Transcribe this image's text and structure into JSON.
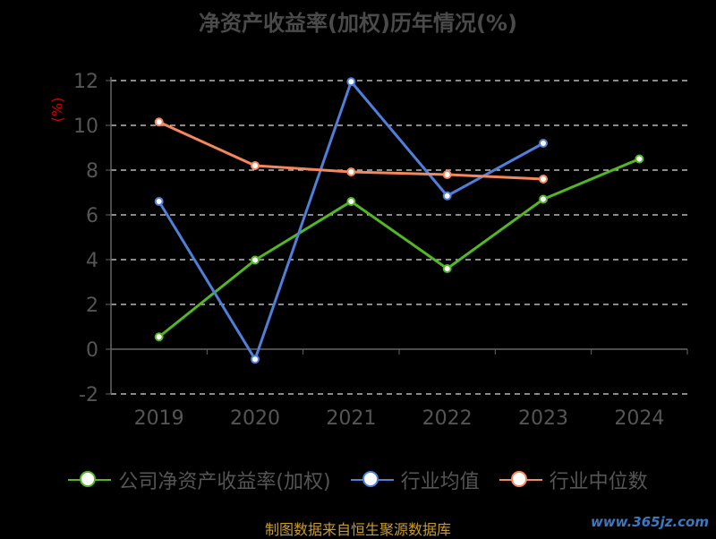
{
  "chart_data": {
    "type": "line",
    "title": "净资产收益率(加权)历年情况(%)",
    "ylabel": "(%)",
    "categories": [
      "2019",
      "2020",
      "2021",
      "2022",
      "2023",
      "2024"
    ],
    "ylim": [
      -2,
      12
    ],
    "yticks": [
      "-2",
      "0",
      "2",
      "4",
      "6",
      "8",
      "10",
      "12"
    ],
    "grid": true,
    "legend_position": "bottom",
    "series": [
      {
        "name": "公司净资产收益率(加权)",
        "color": "#52b723",
        "values": [
          0.55,
          3.98,
          6.6,
          3.6,
          6.7,
          8.5
        ]
      },
      {
        "name": "行业均值",
        "color": "#4f7fd9",
        "values": [
          6.6,
          -0.45,
          11.95,
          6.85,
          9.2,
          null
        ]
      },
      {
        "name": "行业中位数",
        "color": "#f4875b",
        "values": [
          10.15,
          8.2,
          7.92,
          7.8,
          7.6,
          null
        ]
      }
    ]
  },
  "footer": {
    "source": "制图数据来自恒生聚源数据库",
    "watermark": "www.365jz.com"
  }
}
